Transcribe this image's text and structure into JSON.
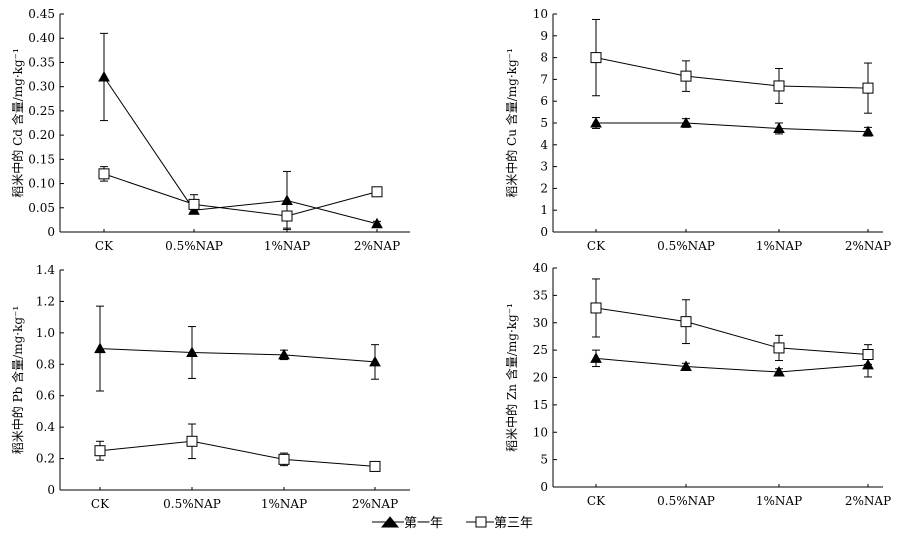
{
  "chart_data": [
    {
      "type": "line",
      "ylabel": "稻米中的 Cd 含量/mg·kg⁻¹",
      "categories": [
        "CK",
        "0.5%NAP",
        "1%NAP",
        "2%NAP"
      ],
      "ylim": [
        0,
        0.45
      ],
      "yticks": [
        "0",
        "0.05",
        "0.10",
        "0.15",
        "0.20",
        "0.25",
        "0.30",
        "0.35",
        "0.40",
        "0.45"
      ],
      "ytick_values": [
        0,
        0.05,
        0.1,
        0.15,
        0.2,
        0.25,
        0.3,
        0.35,
        0.4,
        0.45
      ],
      "series": [
        {
          "name": "第一年",
          "marker": "filled-triangle",
          "values": [
            0.32,
            0.045,
            0.065,
            0.017
          ],
          "err": [
            0.09,
            0.005,
            0.06,
            0.005
          ]
        },
        {
          "name": "第三年",
          "marker": "open-square",
          "values": [
            0.12,
            0.057,
            0.033,
            0.083
          ],
          "err": [
            0.015,
            0.02,
            0.025,
            0.005
          ]
        }
      ]
    },
    {
      "type": "line",
      "ylabel": "稻米中的 Cu 含量/mg·kg⁻¹",
      "categories": [
        "CK",
        "0.5%NAP",
        "1%NAP",
        "2%NAP"
      ],
      "ylim": [
        0,
        10
      ],
      "yticks": [
        "0",
        "1",
        "2",
        "3",
        "4",
        "5",
        "6",
        "7",
        "8",
        "9",
        "10"
      ],
      "ytick_values": [
        0,
        1,
        2,
        3,
        4,
        5,
        6,
        7,
        8,
        9,
        10
      ],
      "series": [
        {
          "name": "第一年",
          "marker": "filled-triangle",
          "values": [
            5.0,
            5.0,
            4.75,
            4.6
          ],
          "err": [
            0.25,
            0.2,
            0.25,
            0.2
          ]
        },
        {
          "name": "第三年",
          "marker": "open-square",
          "values": [
            8.0,
            7.15,
            6.7,
            6.6
          ],
          "err": [
            1.75,
            0.7,
            0.8,
            1.15
          ]
        }
      ]
    },
    {
      "type": "line",
      "ylabel": "稻米中的 Pb 含量/mg·kg⁻¹",
      "categories": [
        "CK",
        "0.5%NAP",
        "1%NAP",
        "2%NAP"
      ],
      "ylim": [
        0,
        1.4
      ],
      "yticks": [
        "0",
        "0.2",
        "0.4",
        "0.6",
        "0.8",
        "1.0",
        "1.2",
        "1.4"
      ],
      "ytick_values": [
        0,
        0.2,
        0.4,
        0.6,
        0.8,
        1.0,
        1.2,
        1.4
      ],
      "series": [
        {
          "name": "第一年",
          "marker": "filled-triangle",
          "values": [
            0.9,
            0.875,
            0.86,
            0.815
          ],
          "err": [
            0.27,
            0.165,
            0.03,
            0.11
          ]
        },
        {
          "name": "第三年",
          "marker": "open-square",
          "values": [
            0.25,
            0.31,
            0.195,
            0.15
          ],
          "err": [
            0.06,
            0.11,
            0.04,
            0.025
          ]
        }
      ]
    },
    {
      "type": "line",
      "ylabel": "稻米中的 Zn 含量/mg·kg⁻¹",
      "categories": [
        "CK",
        "0.5%NAP",
        "1%NAP",
        "2%NAP"
      ],
      "ylim": [
        0,
        40
      ],
      "yticks": [
        "0",
        "5",
        "10",
        "15",
        "20",
        "25",
        "30",
        "35",
        "40"
      ],
      "ytick_values": [
        0,
        5,
        10,
        15,
        20,
        25,
        30,
        35,
        40
      ],
      "series": [
        {
          "name": "第一年",
          "marker": "filled-triangle",
          "values": [
            23.5,
            22.0,
            21.0,
            22.3
          ],
          "err": [
            1.5,
            0.6,
            0.6,
            2.2
          ]
        },
        {
          "name": "第三年",
          "marker": "open-square",
          "values": [
            32.7,
            30.2,
            25.4,
            24.2
          ],
          "err": [
            5.3,
            4.0,
            2.3,
            1.8
          ]
        }
      ]
    }
  ],
  "legend": {
    "items": [
      {
        "label": "第一年",
        "marker": "filled-triangle"
      },
      {
        "label": "第三年",
        "marker": "open-square"
      }
    ]
  }
}
